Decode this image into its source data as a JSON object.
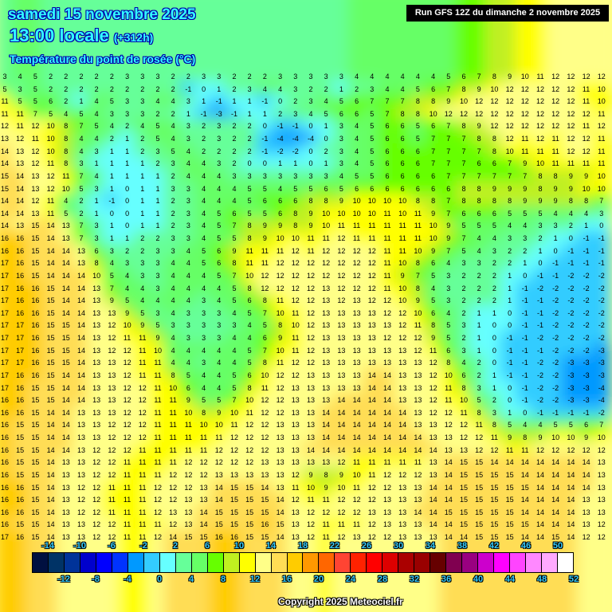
{
  "header": {
    "date": "samedi 15 novembre 2025",
    "time": "13:00 locale",
    "lead": "(+312h)",
    "variable": "Température du point de rosée (°C)",
    "run": "Run GFS 12Z du dimanche 2 novembre 2025"
  },
  "copyright": "Copyright 2025 Meteociel.fr",
  "legend": {
    "colors": [
      "#001040",
      "#003366",
      "#003399",
      "#0000cc",
      "#0000ff",
      "#0033ff",
      "#0099ff",
      "#33ccff",
      "#66ffff",
      "#66ff99",
      "#66ff66",
      "#66ff00",
      "#c0f020",
      "#ffff00",
      "#ffff88",
      "#ffdd55",
      "#ffcc00",
      "#ff9900",
      "#ff6600",
      "#ff4433",
      "#ff2200",
      "#ff0000",
      "#dd0000",
      "#aa0000",
      "#990000",
      "#660000",
      "#800050",
      "#990080",
      "#cc00cc",
      "#ff00ff",
      "#ff44ff",
      "#ff88ff",
      "#ffaaff",
      "#ffffff"
    ],
    "top_labels": [
      "-14",
      "-10",
      "-6",
      "-2",
      "2",
      "6",
      "10",
      "14",
      "18",
      "22",
      "26",
      "30",
      "34",
      "38",
      "42",
      "46",
      "50"
    ],
    "bottom_labels": [
      "-12",
      "-8",
      "-4",
      "0",
      "4",
      "8",
      "12",
      "16",
      "20",
      "24",
      "28",
      "32",
      "36",
      "40",
      "44",
      "48",
      "52"
    ]
  },
  "grid_values": [
    [
      3,
      4,
      5,
      2,
      2,
      2,
      2,
      2,
      3,
      3,
      3,
      2,
      2,
      3,
      3,
      2,
      2,
      2,
      3,
      3,
      3,
      3,
      3,
      4,
      4,
      4,
      4,
      4,
      4,
      5,
      6,
      7,
      8,
      9,
      10,
      11,
      12,
      12,
      12,
      12
    ],
    [
      5,
      3,
      5,
      2,
      2,
      2,
      2,
      2,
      2,
      2,
      2,
      2,
      -1,
      0,
      1,
      2,
      3,
      4,
      4,
      3,
      2,
      2,
      1,
      2,
      3,
      4,
      4,
      5,
      6,
      7,
      8,
      9,
      10,
      12,
      12,
      12,
      12,
      12,
      11,
      10
    ],
    [
      11,
      5,
      5,
      6,
      2,
      1,
      4,
      5,
      3,
      3,
      4,
      4,
      3,
      1,
      -1,
      1,
      1,
      -1,
      0,
      2,
      3,
      4,
      5,
      6,
      7,
      7,
      7,
      8,
      8,
      9,
      10,
      12,
      12,
      12,
      12,
      12,
      12,
      12,
      11,
      10
    ],
    [
      11,
      11,
      7,
      5,
      4,
      5,
      4,
      3,
      3,
      3,
      2,
      2,
      1,
      -1,
      -3,
      -1,
      1,
      1,
      2,
      3,
      4,
      5,
      6,
      6,
      5,
      7,
      8,
      8,
      10,
      12,
      12,
      12,
      12,
      12,
      12,
      12,
      12,
      12,
      12,
      11
    ],
    [
      12,
      11,
      12,
      10,
      8,
      7,
      5,
      4,
      2,
      4,
      5,
      4,
      3,
      2,
      3,
      2,
      2,
      0,
      -1,
      -1,
      0,
      1,
      3,
      4,
      5,
      6,
      6,
      5,
      6,
      7,
      8,
      9,
      12,
      12,
      12,
      12,
      12,
      12,
      11,
      12
    ],
    [
      13,
      12,
      11,
      10,
      8,
      4,
      4,
      2,
      1,
      2,
      5,
      4,
      3,
      2,
      3,
      2,
      2,
      -1,
      -4,
      -4,
      -4,
      0,
      3,
      4,
      5,
      6,
      6,
      5,
      7,
      7,
      7,
      8,
      8,
      12,
      11,
      12,
      11,
      12,
      12,
      11
    ],
    [
      14,
      13,
      12,
      10,
      8,
      4,
      3,
      1,
      1,
      2,
      3,
      5,
      4,
      2,
      2,
      2,
      2,
      -1,
      -2,
      -2,
      0,
      2,
      3,
      4,
      5,
      6,
      6,
      6,
      7,
      7,
      7,
      7,
      8,
      10,
      11,
      11,
      11,
      12,
      12,
      11
    ],
    [
      14,
      13,
      12,
      11,
      8,
      3,
      1,
      1,
      1,
      1,
      2,
      3,
      4,
      4,
      3,
      2,
      0,
      0,
      1,
      1,
      0,
      1,
      3,
      4,
      5,
      6,
      6,
      6,
      7,
      7,
      7,
      6,
      6,
      7,
      9,
      10,
      11,
      11,
      11,
      11
    ],
    [
      15,
      14,
      13,
      12,
      11,
      7,
      4,
      1,
      1,
      1,
      1,
      2,
      4,
      4,
      4,
      3,
      3,
      3,
      3,
      3,
      3,
      3,
      4,
      5,
      5,
      6,
      6,
      6,
      6,
      7,
      7,
      7,
      7,
      7,
      7,
      8,
      8,
      9,
      9,
      10
    ],
    [
      15,
      14,
      13,
      12,
      10,
      5,
      3,
      1,
      0,
      1,
      1,
      3,
      3,
      4,
      4,
      4,
      5,
      5,
      4,
      5,
      5,
      6,
      5,
      6,
      6,
      6,
      6,
      6,
      6,
      6,
      8,
      8,
      9,
      9,
      9,
      8,
      9,
      9,
      10,
      10
    ],
    [
      14,
      14,
      12,
      11,
      4,
      2,
      1,
      -1,
      0,
      1,
      1,
      2,
      3,
      4,
      4,
      4,
      5,
      6,
      6,
      6,
      8,
      8,
      9,
      10,
      10,
      10,
      10,
      8,
      8,
      7,
      8,
      8,
      8,
      8,
      9,
      9,
      9,
      8,
      8,
      7
    ],
    [
      14,
      14,
      13,
      11,
      5,
      2,
      1,
      0,
      0,
      1,
      1,
      2,
      3,
      4,
      5,
      6,
      5,
      5,
      6,
      8,
      9,
      10,
      10,
      10,
      10,
      11,
      10,
      11,
      9,
      7,
      6,
      6,
      6,
      5,
      5,
      5,
      4,
      4,
      4,
      3
    ],
    [
      14,
      13,
      15,
      14,
      13,
      7,
      3,
      1,
      0,
      1,
      1,
      2,
      3,
      4,
      5,
      7,
      8,
      9,
      9,
      8,
      9,
      10,
      11,
      11,
      11,
      11,
      11,
      11,
      10,
      9,
      5,
      5,
      5,
      4,
      4,
      3,
      3,
      2,
      1,
      0
    ],
    [
      16,
      16,
      15,
      14,
      13,
      7,
      3,
      1,
      1,
      2,
      2,
      3,
      3,
      4,
      5,
      5,
      8,
      9,
      10,
      10,
      11,
      11,
      12,
      11,
      11,
      11,
      11,
      11,
      10,
      9,
      7,
      4,
      4,
      3,
      3,
      2,
      1,
      0,
      -1,
      -1
    ],
    [
      16,
      16,
      15,
      14,
      14,
      13,
      6,
      3,
      2,
      2,
      3,
      3,
      4,
      5,
      6,
      9,
      11,
      11,
      11,
      12,
      11,
      12,
      12,
      12,
      12,
      11,
      11,
      10,
      9,
      7,
      5,
      4,
      3,
      2,
      2,
      1,
      0,
      -1,
      -1,
      -1
    ],
    [
      17,
      16,
      15,
      14,
      14,
      13,
      8,
      4,
      3,
      3,
      3,
      4,
      4,
      5,
      6,
      8,
      11,
      11,
      12,
      12,
      12,
      12,
      12,
      12,
      12,
      11,
      10,
      8,
      6,
      4,
      3,
      3,
      2,
      2,
      1,
      0,
      -1,
      -1,
      -1,
      -1
    ],
    [
      17,
      16,
      15,
      14,
      14,
      14,
      10,
      5,
      4,
      3,
      3,
      4,
      4,
      4,
      5,
      7,
      10,
      12,
      12,
      12,
      12,
      12,
      12,
      12,
      12,
      11,
      9,
      7,
      5,
      3,
      2,
      2,
      2,
      1,
      0,
      -1,
      -1,
      -2,
      -2,
      -2
    ],
    [
      17,
      16,
      16,
      15,
      14,
      14,
      13,
      7,
      4,
      4,
      3,
      4,
      4,
      4,
      4,
      5,
      8,
      12,
      12,
      12,
      12,
      13,
      12,
      12,
      12,
      11,
      10,
      8,
      4,
      3,
      2,
      2,
      2,
      1,
      -1,
      -2,
      -2,
      -2,
      -2,
      -2
    ],
    [
      17,
      16,
      16,
      15,
      14,
      14,
      13,
      9,
      5,
      4,
      4,
      4,
      4,
      3,
      4,
      5,
      6,
      8,
      11,
      12,
      12,
      13,
      12,
      13,
      12,
      12,
      10,
      9,
      5,
      3,
      2,
      2,
      2,
      1,
      -1,
      -1,
      -2,
      -2,
      -2,
      -2
    ],
    [
      17,
      16,
      16,
      15,
      14,
      14,
      13,
      13,
      9,
      5,
      3,
      4,
      3,
      3,
      3,
      4,
      5,
      7,
      10,
      11,
      12,
      13,
      13,
      13,
      13,
      12,
      12,
      10,
      6,
      4,
      2,
      1,
      1,
      0,
      -1,
      -1,
      -2,
      -2,
      -2,
      -2
    ],
    [
      17,
      17,
      16,
      15,
      15,
      14,
      13,
      12,
      10,
      9,
      5,
      3,
      3,
      3,
      3,
      3,
      4,
      5,
      8,
      10,
      12,
      13,
      13,
      13,
      13,
      13,
      12,
      11,
      8,
      5,
      3,
      1,
      0,
      0,
      -1,
      -1,
      -2,
      -2,
      -2,
      -2
    ],
    [
      17,
      17,
      16,
      15,
      15,
      14,
      13,
      12,
      11,
      11,
      9,
      4,
      3,
      3,
      3,
      4,
      4,
      6,
      9,
      11,
      12,
      13,
      13,
      13,
      13,
      12,
      12,
      12,
      9,
      5,
      2,
      1,
      0,
      -1,
      -1,
      -2,
      -2,
      -2,
      -2,
      -2
    ],
    [
      17,
      17,
      16,
      15,
      15,
      14,
      13,
      12,
      12,
      11,
      10,
      4,
      4,
      4,
      4,
      4,
      5,
      7,
      10,
      11,
      12,
      13,
      13,
      13,
      13,
      13,
      13,
      12,
      11,
      6,
      3,
      1,
      0,
      -1,
      -1,
      -1,
      -2,
      -2,
      -2,
      -3
    ],
    [
      17,
      17,
      16,
      15,
      15,
      14,
      13,
      13,
      12,
      11,
      11,
      4,
      4,
      3,
      4,
      4,
      5,
      8,
      11,
      12,
      12,
      13,
      13,
      13,
      13,
      13,
      13,
      13,
      12,
      8,
      4,
      2,
      0,
      -1,
      -1,
      -2,
      -2,
      -3,
      -3,
      -3
    ],
    [
      17,
      16,
      16,
      15,
      14,
      14,
      13,
      13,
      12,
      11,
      11,
      8,
      5,
      4,
      4,
      5,
      6,
      10,
      12,
      12,
      13,
      13,
      13,
      13,
      14,
      14,
      13,
      13,
      12,
      10,
      6,
      2,
      1,
      -1,
      -1,
      -2,
      -2,
      -3,
      -3,
      -3
    ],
    [
      17,
      16,
      15,
      15,
      14,
      14,
      13,
      13,
      12,
      12,
      11,
      10,
      6,
      4,
      4,
      5,
      8,
      11,
      12,
      13,
      13,
      13,
      13,
      13,
      14,
      14,
      13,
      13,
      12,
      11,
      8,
      3,
      1,
      0,
      -1,
      -2,
      -2,
      -3,
      -3,
      -4
    ],
    [
      16,
      16,
      15,
      15,
      14,
      14,
      13,
      13,
      12,
      12,
      11,
      11,
      9,
      5,
      5,
      7,
      10,
      12,
      12,
      13,
      13,
      13,
      14,
      14,
      14,
      14,
      13,
      13,
      12,
      11,
      10,
      5,
      2,
      0,
      -1,
      -2,
      -2,
      -3,
      -3,
      -4
    ],
    [
      16,
      16,
      15,
      14,
      14,
      13,
      13,
      13,
      12,
      12,
      11,
      11,
      10,
      8,
      9,
      10,
      11,
      12,
      12,
      13,
      13,
      14,
      14,
      14,
      14,
      14,
      14,
      13,
      12,
      12,
      11,
      8,
      3,
      1,
      0,
      -1,
      -1,
      -1,
      -1,
      -2
    ],
    [
      16,
      15,
      15,
      14,
      14,
      13,
      13,
      12,
      12,
      12,
      11,
      11,
      11,
      10,
      10,
      11,
      12,
      12,
      13,
      13,
      13,
      14,
      14,
      14,
      14,
      14,
      14,
      13,
      13,
      12,
      12,
      11,
      8,
      5,
      4,
      4,
      5,
      5,
      6,
      7
    ],
    [
      16,
      15,
      15,
      14,
      14,
      13,
      13,
      12,
      12,
      12,
      11,
      11,
      11,
      11,
      11,
      12,
      12,
      12,
      13,
      13,
      13,
      14,
      14,
      14,
      14,
      14,
      14,
      14,
      13,
      13,
      12,
      12,
      11,
      9,
      8,
      9,
      10,
      10,
      9,
      10
    ],
    [
      16,
      15,
      15,
      14,
      14,
      13,
      12,
      12,
      12,
      11,
      11,
      11,
      11,
      11,
      12,
      12,
      12,
      12,
      13,
      13,
      14,
      14,
      14,
      14,
      14,
      14,
      14,
      14,
      14,
      13,
      13,
      12,
      12,
      11,
      11,
      12,
      12,
      12,
      12,
      12
    ],
    [
      16,
      15,
      15,
      14,
      13,
      13,
      12,
      12,
      11,
      11,
      11,
      11,
      12,
      12,
      12,
      12,
      12,
      13,
      13,
      13,
      13,
      13,
      12,
      11,
      11,
      11,
      11,
      11,
      13,
      14,
      15,
      15,
      14,
      14,
      14,
      14,
      14,
      14,
      14,
      13
    ],
    [
      16,
      15,
      15,
      14,
      13,
      13,
      12,
      12,
      11,
      11,
      11,
      12,
      12,
      12,
      13,
      13,
      13,
      13,
      13,
      12,
      9,
      8,
      9,
      10,
      11,
      12,
      12,
      12,
      13,
      14,
      15,
      15,
      15,
      15,
      14,
      14,
      14,
      14,
      14,
      13
    ],
    [
      16,
      16,
      15,
      14,
      13,
      12,
      12,
      11,
      11,
      11,
      12,
      12,
      12,
      13,
      14,
      15,
      15,
      14,
      13,
      11,
      10,
      9,
      10,
      11,
      12,
      12,
      13,
      13,
      14,
      14,
      15,
      15,
      15,
      15,
      15,
      14,
      14,
      14,
      14,
      13
    ],
    [
      16,
      16,
      15,
      14,
      13,
      12,
      12,
      11,
      11,
      11,
      12,
      12,
      13,
      13,
      14,
      15,
      15,
      15,
      14,
      12,
      11,
      11,
      12,
      12,
      12,
      13,
      13,
      13,
      14,
      14,
      15,
      15,
      15,
      15,
      14,
      14,
      14,
      14,
      13,
      13
    ],
    [
      16,
      16,
      15,
      14,
      13,
      12,
      12,
      11,
      11,
      11,
      12,
      13,
      13,
      14,
      15,
      15,
      15,
      15,
      14,
      13,
      12,
      12,
      12,
      12,
      13,
      13,
      13,
      14,
      14,
      15,
      15,
      15,
      15,
      15,
      14,
      14,
      14,
      14,
      13,
      13
    ],
    [
      16,
      15,
      15,
      14,
      13,
      13,
      12,
      12,
      11,
      11,
      11,
      12,
      13,
      14,
      15,
      15,
      15,
      16,
      15,
      13,
      12,
      11,
      11,
      11,
      12,
      13,
      13,
      13,
      14,
      14,
      15,
      15,
      15,
      15,
      15,
      14,
      14,
      14,
      13,
      12
    ],
    [
      17,
      16,
      15,
      14,
      13,
      13,
      12,
      12,
      11,
      11,
      12,
      14,
      15,
      15,
      16,
      16,
      15,
      15,
      14,
      13,
      12,
      11,
      12,
      13,
      12,
      12,
      13,
      13,
      13,
      14,
      14,
      15,
      15,
      15,
      14,
      14,
      15,
      14,
      12,
      12
    ]
  ]
}
